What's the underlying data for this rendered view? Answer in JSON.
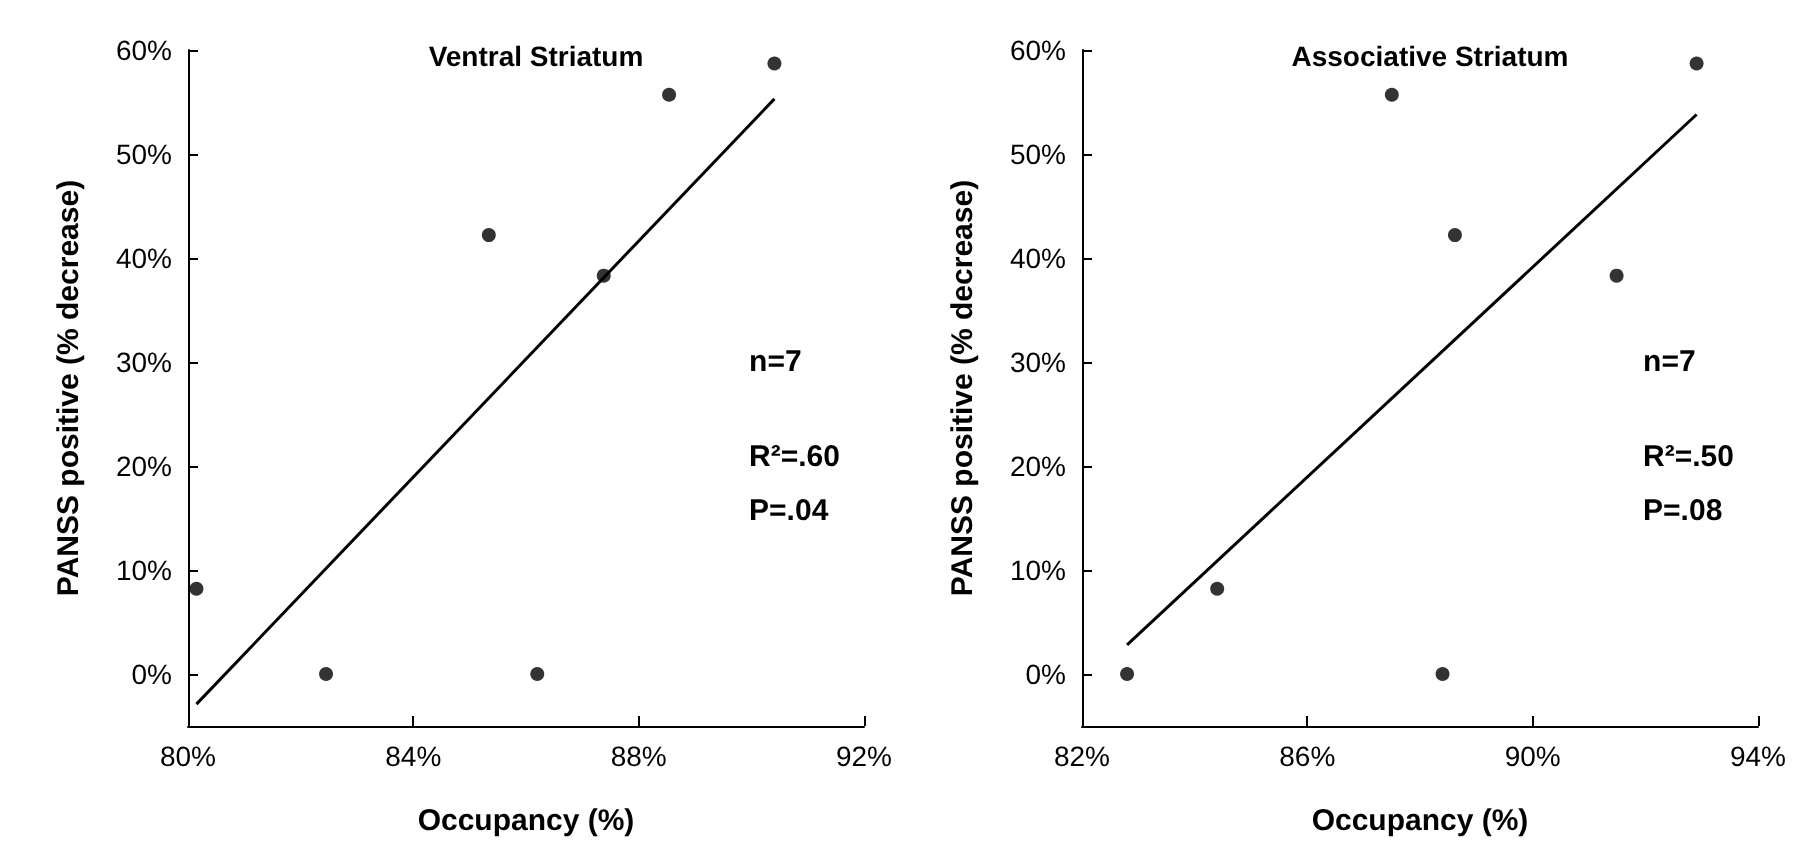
{
  "chart_data": [
    {
      "type": "scatter",
      "title": "Ventral Striatum",
      "xlabel": "Occupancy (%)",
      "ylabel": "PANSS positive (% decrease)",
      "marker": "circle",
      "grid": false,
      "xlim": [
        80,
        92
      ],
      "xticks": [
        {
          "value": 80,
          "label": "80%"
        },
        {
          "value": 84,
          "label": "84%"
        },
        {
          "value": 88,
          "label": "88%"
        },
        {
          "value": 92,
          "label": "92%"
        }
      ],
      "ylim": [
        -5,
        60
      ],
      "yticks": [
        {
          "value": 0,
          "label": "0%"
        },
        {
          "value": 10,
          "label": "10%"
        },
        {
          "value": 20,
          "label": "20%"
        },
        {
          "value": 30,
          "label": "30%"
        },
        {
          "value": 40,
          "label": "40%"
        },
        {
          "value": 50,
          "label": "50%"
        },
        {
          "value": 60,
          "label": "60%"
        }
      ],
      "series": [
        {
          "color": "#000000",
          "x": [
            80.15,
            82.45,
            85.34,
            86.2,
            87.38,
            88.54,
            90.41
          ],
          "values": [
            8.2,
            0,
            42.2,
            0,
            38.3,
            55.7,
            58.7
          ]
        },
        {
          "type": "line",
          "color": "#000000",
          "marker": "none",
          "x": [
            80.15,
            90.41
          ],
          "values": [
            -2.9,
            55.3
          ]
        }
      ],
      "annotations": [
        "n=7",
        "R²=.60",
        "P=.04"
      ]
    },
    {
      "type": "scatter",
      "title": "Associative Striatum",
      "xlabel": "Occupancy (%)",
      "ylabel": "PANSS positive (% decrease)",
      "marker": "circle",
      "grid": false,
      "xlim": [
        82,
        94
      ],
      "xticks": [
        {
          "value": 82,
          "label": "82%"
        },
        {
          "value": 86,
          "label": "86%"
        },
        {
          "value": 90,
          "label": "90%"
        },
        {
          "value": 94,
          "label": "94%"
        }
      ],
      "ylim": [
        -5,
        60
      ],
      "yticks": [
        {
          "value": 0,
          "label": "0%"
        },
        {
          "value": 10,
          "label": "10%"
        },
        {
          "value": 20,
          "label": "20%"
        },
        {
          "value": 30,
          "label": "30%"
        },
        {
          "value": 40,
          "label": "40%"
        },
        {
          "value": 50,
          "label": "50%"
        },
        {
          "value": 60,
          "label": "60%"
        }
      ],
      "series": [
        {
          "color": "#000000",
          "x": [
            82.8,
            84.4,
            87.5,
            88.62,
            88.4,
            91.49,
            92.91
          ],
          "values": [
            0,
            8.2,
            55.7,
            42.2,
            0,
            38.3,
            58.7
          ]
        },
        {
          "type": "line",
          "color": "#000000",
          "marker": "none",
          "x": [
            82.8,
            92.91
          ],
          "values": [
            2.8,
            53.8
          ]
        }
      ],
      "annotations": [
        "n=7",
        "R²=.50",
        "P=.08"
      ]
    }
  ]
}
